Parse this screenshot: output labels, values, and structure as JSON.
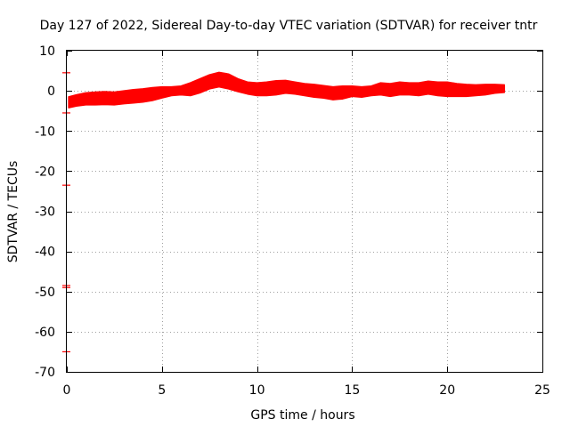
{
  "chart_data": {
    "type": "scatter",
    "title": "Day 127 of 2022, Sidereal Day-to-day VTEC variation (SDTVAR) for receiver tntr",
    "xlabel": "GPS time / hours",
    "ylabel": "SDTVAR / TECUs",
    "xlim": [
      0,
      25
    ],
    "ylim": [
      -70,
      10
    ],
    "xticks": [
      0,
      5,
      10,
      15,
      20,
      25
    ],
    "yticks": [
      -70,
      -60,
      -50,
      -40,
      -30,
      -20,
      -10,
      0,
      10
    ],
    "grid": true,
    "series_color": "#ff0000",
    "band": {
      "name": "SDTVAR",
      "x": [
        0.1,
        0.5,
        1.0,
        1.5,
        2.0,
        2.5,
        3.0,
        3.5,
        4.0,
        4.5,
        5.0,
        5.5,
        6.0,
        6.5,
        7.0,
        7.5,
        8.0,
        8.5,
        9.0,
        9.5,
        10.0,
        10.5,
        11.0,
        11.5,
        12.0,
        12.5,
        13.0,
        13.5,
        14.0,
        14.5,
        15.0,
        15.5,
        16.0,
        16.5,
        17.0,
        17.5,
        18.0,
        18.5,
        19.0,
        19.5,
        20.0,
        20.5,
        21.0,
        21.5,
        22.0,
        22.5,
        23.0
      ],
      "upper": [
        -1.5,
        -1.0,
        -0.5,
        -0.3,
        -0.2,
        -0.3,
        0.0,
        0.3,
        0.5,
        0.8,
        1.0,
        1.0,
        1.2,
        2.0,
        3.0,
        4.0,
        4.6,
        4.2,
        3.0,
        2.2,
        2.0,
        2.2,
        2.5,
        2.6,
        2.2,
        1.8,
        1.6,
        1.3,
        1.0,
        1.2,
        1.2,
        1.0,
        1.2,
        2.0,
        1.8,
        2.2,
        2.0,
        2.0,
        2.4,
        2.2,
        2.2,
        1.8,
        1.6,
        1.5,
        1.6,
        1.6,
        1.5
      ],
      "lower": [
        -4.2,
        -3.8,
        -3.5,
        -3.5,
        -3.4,
        -3.5,
        -3.2,
        -3.0,
        -2.8,
        -2.4,
        -1.8,
        -1.2,
        -1.0,
        -1.2,
        -0.5,
        0.5,
        1.0,
        0.5,
        -0.2,
        -0.8,
        -1.2,
        -1.2,
        -1.0,
        -0.6,
        -0.8,
        -1.2,
        -1.6,
        -1.8,
        -2.2,
        -2.0,
        -1.4,
        -1.6,
        -1.2,
        -1.0,
        -1.4,
        -1.0,
        -1.0,
        -1.2,
        -0.8,
        -1.2,
        -1.4,
        -1.4,
        -1.4,
        -1.2,
        -1.0,
        -0.6,
        -0.4
      ]
    },
    "left_markers_y": [
      4.5,
      -5.5,
      -23.5,
      -48.5,
      -49.0,
      -65.0
    ]
  }
}
